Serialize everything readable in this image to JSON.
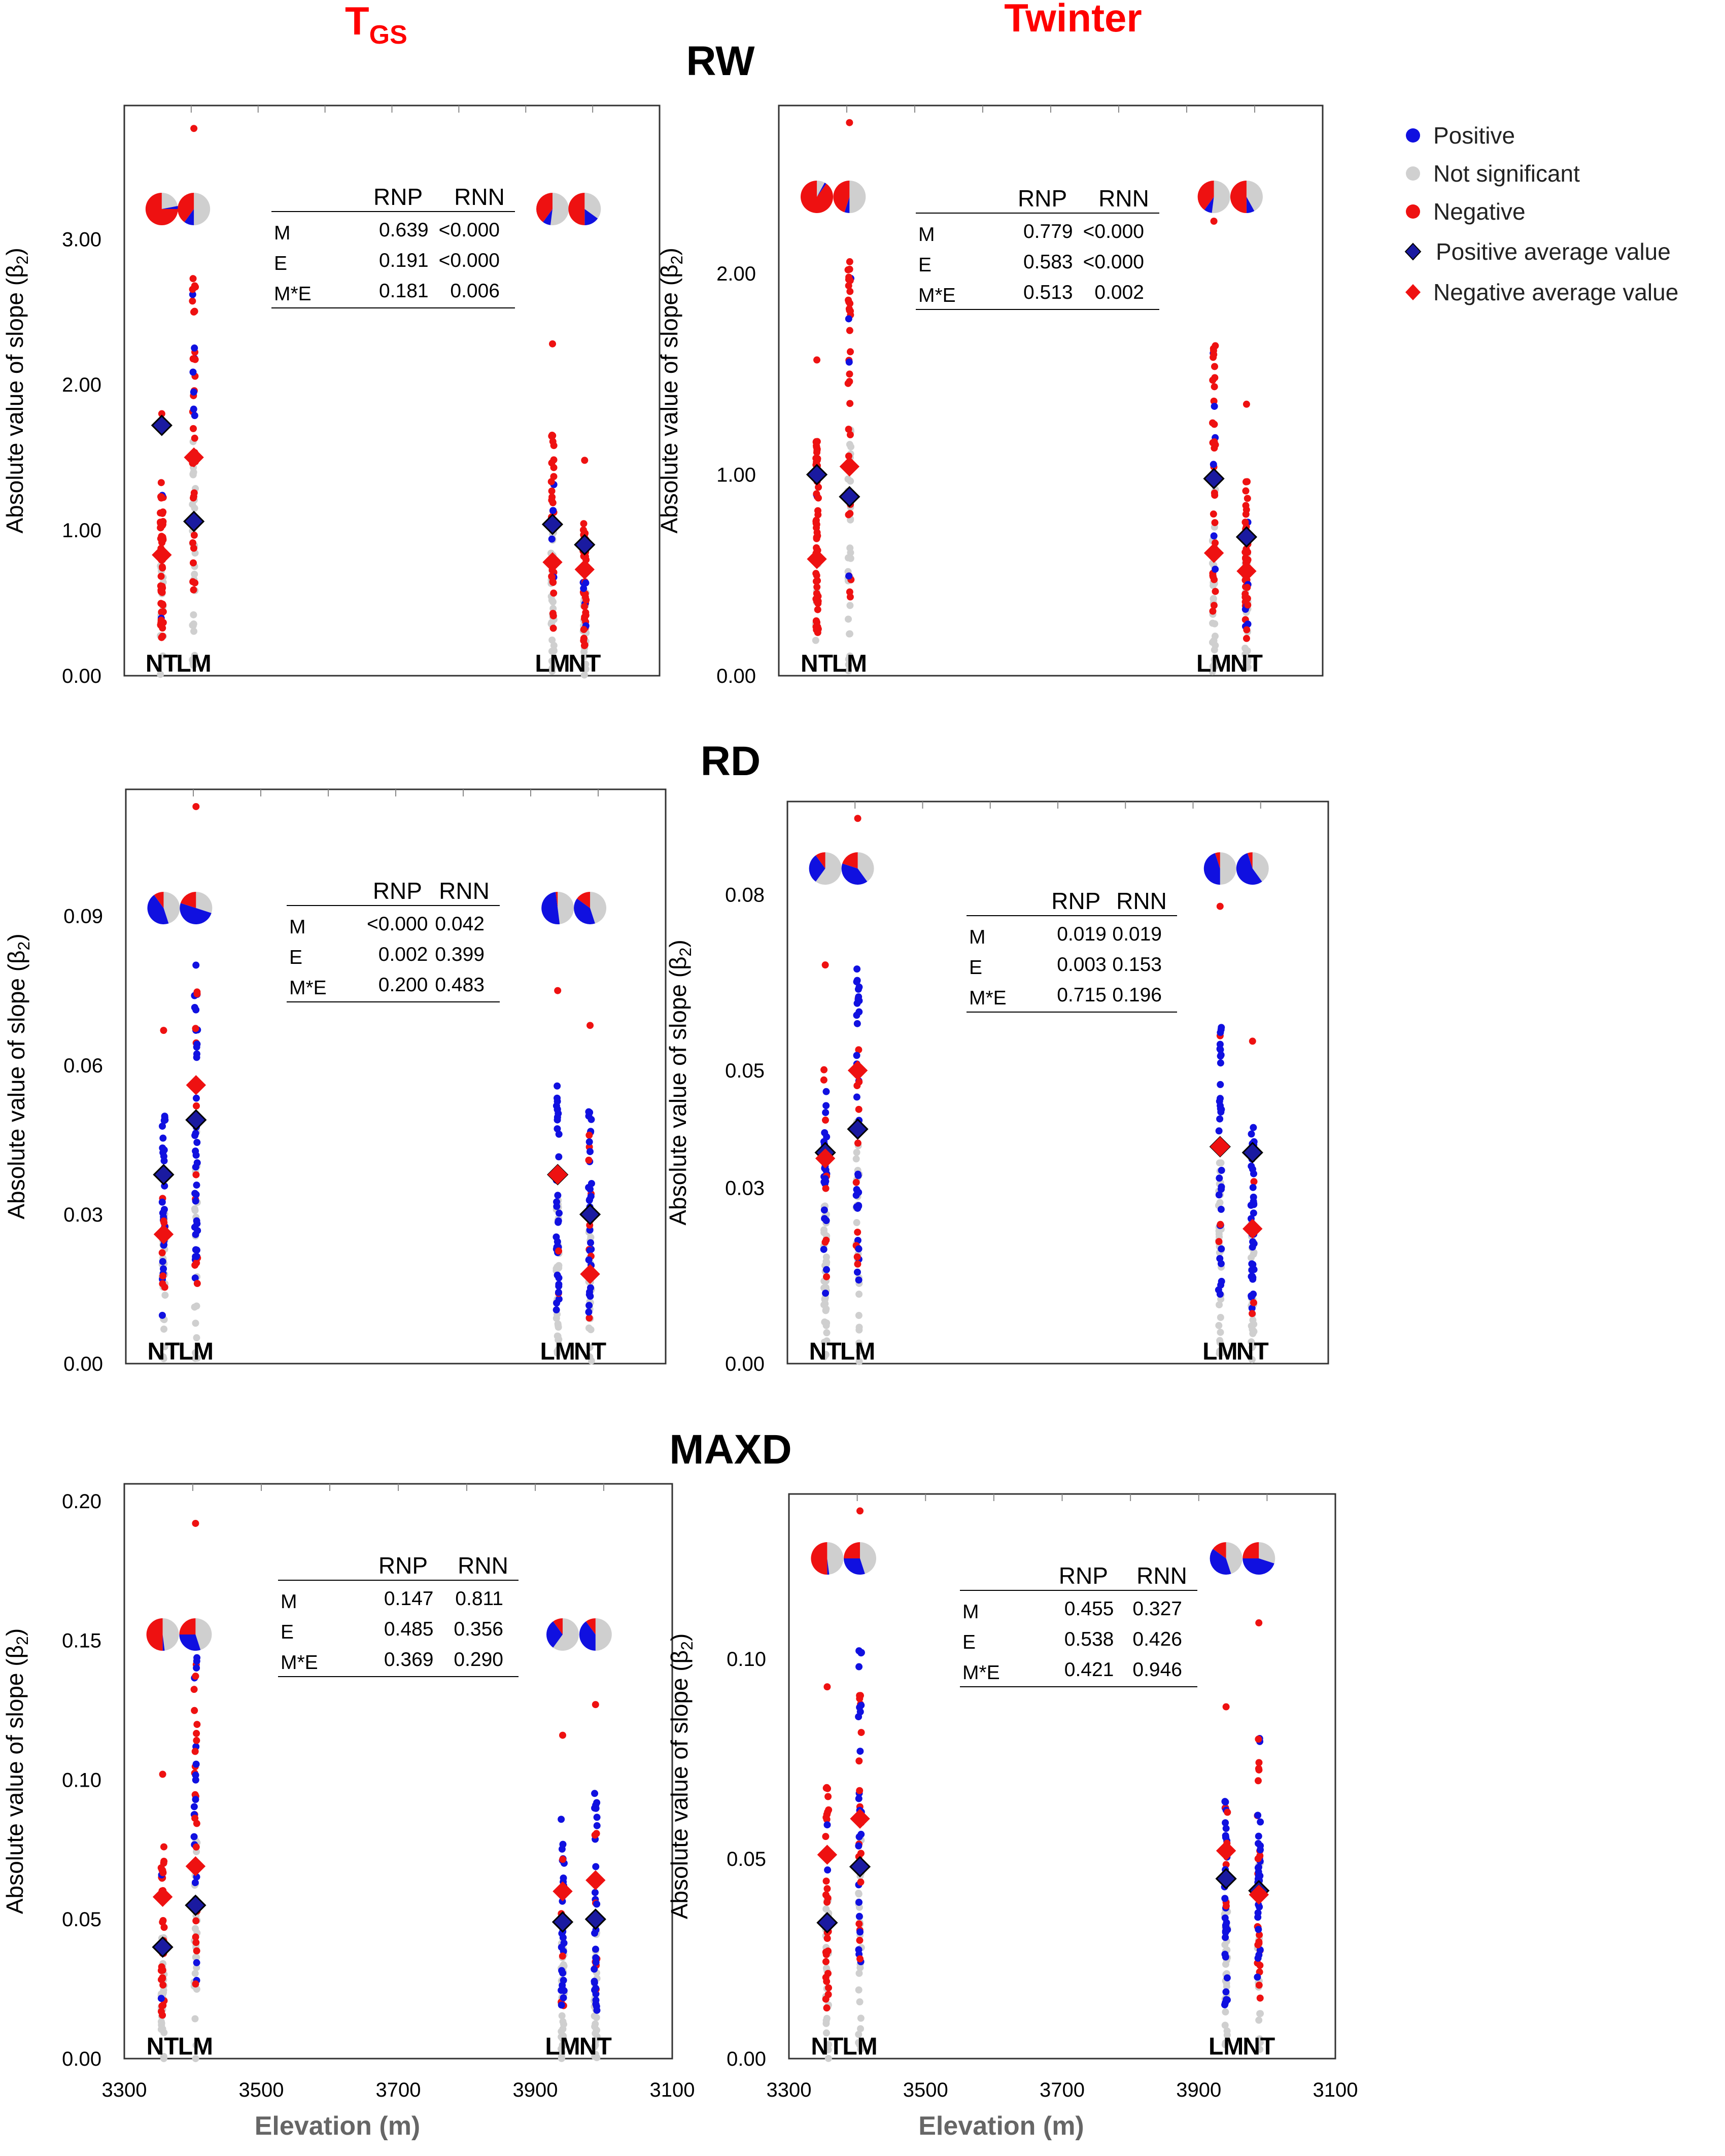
{
  "figure": {
    "column_titles": [
      {
        "main": "T",
        "sub": "GS"
      },
      {
        "main": "Twinter",
        "sub": ""
      }
    ],
    "row_titles": [
      "RW",
      "RD",
      "MAXD"
    ],
    "ylabel_prefix": "Absolute value of  slope (β",
    "ylabel_sub": "2",
    "ylabel_suffix": ")",
    "xlabel": "Elevation (m)",
    "xticks": [
      "3300",
      "3500",
      "3700",
      "3900",
      "3100"
    ],
    "table_header": [
      "RNP",
      "RNN"
    ],
    "table_rows": [
      "M",
      "E",
      "M*E"
    ],
    "sites": [
      "NT",
      "LM",
      "LM",
      "NT"
    ]
  },
  "legend": {
    "items": [
      {
        "label": "Positive",
        "color": "#1010e0",
        "shape": "dot"
      },
      {
        "label": "Not significant",
        "color": "#d0d0d0",
        "shape": "dot"
      },
      {
        "label": "Negative",
        "color": "#ee1111",
        "shape": "dot"
      },
      {
        "label": "Positive average value",
        "color": "#1a1aa0",
        "shape": "diamond"
      },
      {
        "label": "Negative average value",
        "color": "#ee1111",
        "shape": "diamond"
      }
    ]
  },
  "chart_data": [
    {
      "type": "scatter",
      "row": "RW",
      "column": "TGS",
      "yticks": [
        "0.00",
        "1.00",
        "2.00",
        "3.00"
      ],
      "ylim": [
        0,
        3.8
      ],
      "table": [
        [
          "0.639",
          "<0.000"
        ],
        [
          "0.191",
          "<0.000"
        ],
        [
          "0.181",
          "0.006"
        ]
      ],
      "groups": [
        {
          "site": "NT",
          "pos_avg": 1.72,
          "neg_avg": 0.83,
          "pie": {
            "pos": 0.03,
            "ns": 0.22,
            "neg": 0.75
          },
          "max": 1.8
        },
        {
          "site": "LM",
          "pos_avg": 1.06,
          "neg_avg": 1.5,
          "pie": {
            "pos": 0.1,
            "ns": 0.5,
            "neg": 0.4
          },
          "max": 3.76
        },
        {
          "site": "LM",
          "pos_avg": 1.04,
          "neg_avg": 0.78,
          "pie": {
            "pos": 0.08,
            "ns": 0.52,
            "neg": 0.4
          },
          "max": 2.28
        },
        {
          "site": "NT",
          "pos_avg": 0.9,
          "neg_avg": 0.73,
          "pie": {
            "pos": 0.15,
            "ns": 0.35,
            "neg": 0.5
          },
          "max": 1.48
        }
      ]
    },
    {
      "type": "scatter",
      "row": "RW",
      "column": "Twinter",
      "yticks": [
        "0.00",
        "1.00",
        "2.00"
      ],
      "ylim": [
        0,
        2.75
      ],
      "table": [
        [
          "0.779",
          "<0.000"
        ],
        [
          "0.583",
          "<0.000"
        ],
        [
          "0.513",
          "0.002"
        ]
      ],
      "groups": [
        {
          "site": "NT",
          "pos_avg": 1.0,
          "neg_avg": 0.58,
          "pie": {
            "pos": 0.02,
            "ns": 0.08,
            "neg": 0.9
          },
          "max": 1.57
        },
        {
          "site": "LM",
          "pos_avg": 0.89,
          "neg_avg": 1.04,
          "pie": {
            "pos": 0.05,
            "ns": 0.5,
            "neg": 0.45
          },
          "max": 2.75
        },
        {
          "site": "LM",
          "pos_avg": 0.98,
          "neg_avg": 0.61,
          "pie": {
            "pos": 0.08,
            "ns": 0.52,
            "neg": 0.4
          },
          "max": 2.26
        },
        {
          "site": "NT",
          "pos_avg": 0.69,
          "neg_avg": 0.52,
          "pie": {
            "pos": 0.08,
            "ns": 0.42,
            "neg": 0.5
          },
          "max": 1.35
        }
      ]
    },
    {
      "type": "scatter",
      "row": "RD",
      "column": "TGS",
      "yticks": [
        "0.00",
        "0.03",
        "0.06",
        "0.09"
      ],
      "ylim": [
        0,
        0.112
      ],
      "table": [
        [
          "<0.000",
          "0.042"
        ],
        [
          "0.002",
          "0.399"
        ],
        [
          "0.200",
          "0.483"
        ]
      ],
      "groups": [
        {
          "site": "NT",
          "pos_avg": 0.038,
          "neg_avg": 0.026,
          "pie": {
            "pos": 0.45,
            "ns": 0.45,
            "neg": 0.1
          },
          "max": 0.067
        },
        {
          "site": "LM",
          "pos_avg": 0.049,
          "neg_avg": 0.056,
          "pie": {
            "pos": 0.5,
            "ns": 0.3,
            "neg": 0.2
          },
          "max": 0.112
        },
        {
          "site": "LM",
          "pos_avg": 0.038,
          "neg_avg": 0.038,
          "pie": {
            "pos": 0.5,
            "ns": 0.48,
            "neg": 0.02
          },
          "max": 0.075
        },
        {
          "site": "NT",
          "pos_avg": 0.03,
          "neg_avg": 0.018,
          "pie": {
            "pos": 0.4,
            "ns": 0.45,
            "neg": 0.15
          },
          "max": 0.068
        }
      ]
    },
    {
      "type": "scatter",
      "row": "RD",
      "column": "Twinter",
      "yticks": [
        "0.00",
        "0.03",
        "0.05",
        "0.08"
      ],
      "ylim": [
        0,
        0.093
      ],
      "table": [
        [
          "0.019",
          "0.019"
        ],
        [
          "0.003",
          "0.153"
        ],
        [
          "0.715",
          "0.196"
        ]
      ],
      "groups": [
        {
          "site": "NT",
          "pos_avg": 0.036,
          "neg_avg": 0.035,
          "pie": {
            "pos": 0.3,
            "ns": 0.6,
            "neg": 0.1
          },
          "max": 0.068
        },
        {
          "site": "LM",
          "pos_avg": 0.04,
          "neg_avg": 0.05,
          "pie": {
            "pos": 0.4,
            "ns": 0.4,
            "neg": 0.2
          },
          "max": 0.093
        },
        {
          "site": "LM",
          "pos_avg": 0.037,
          "neg_avg": 0.037,
          "pie": {
            "pos": 0.45,
            "ns": 0.5,
            "neg": 0.05
          },
          "max": 0.078
        },
        {
          "site": "NT",
          "pos_avg": 0.036,
          "neg_avg": 0.023,
          "pie": {
            "pos": 0.55,
            "ns": 0.4,
            "neg": 0.05
          },
          "max": 0.055
        }
      ]
    },
    {
      "type": "scatter",
      "row": "MAXD",
      "column": "TGS",
      "yticks": [
        "0.00",
        "0.05",
        "0.10",
        "0.15",
        "0.20"
      ],
      "ylim": [
        0,
        0.2
      ],
      "table": [
        [
          "0.147",
          "0.811"
        ],
        [
          "0.485",
          "0.356"
        ],
        [
          "0.369",
          "0.290"
        ]
      ],
      "groups": [
        {
          "site": "NT",
          "pos_avg": 0.04,
          "neg_avg": 0.058,
          "pie": {
            "pos": 0.02,
            "ns": 0.48,
            "neg": 0.5
          },
          "max": 0.102
        },
        {
          "site": "LM",
          "pos_avg": 0.055,
          "neg_avg": 0.069,
          "pie": {
            "pos": 0.3,
            "ns": 0.45,
            "neg": 0.25
          },
          "max": 0.192
        },
        {
          "site": "LM",
          "pos_avg": 0.049,
          "neg_avg": 0.06,
          "pie": {
            "pos": 0.3,
            "ns": 0.6,
            "neg": 0.1
          },
          "max": 0.116
        },
        {
          "site": "NT",
          "pos_avg": 0.05,
          "neg_avg": 0.064,
          "pie": {
            "pos": 0.4,
            "ns": 0.5,
            "neg": 0.1
          },
          "max": 0.127
        }
      ]
    },
    {
      "type": "scatter",
      "row": "MAXD",
      "column": "Twinter",
      "yticks": [
        "0.00",
        "0.05",
        "0.10"
      ],
      "ylim": [
        0,
        0.137
      ],
      "table": [
        [
          "0.455",
          "0.327"
        ],
        [
          "0.538",
          "0.426"
        ],
        [
          "0.421",
          "0.946"
        ]
      ],
      "groups": [
        {
          "site": "NT",
          "pos_avg": 0.034,
          "neg_avg": 0.051,
          "pie": {
            "pos": 0.02,
            "ns": 0.48,
            "neg": 0.5
          },
          "max": 0.093
        },
        {
          "site": "LM",
          "pos_avg": 0.048,
          "neg_avg": 0.06,
          "pie": {
            "pos": 0.3,
            "ns": 0.45,
            "neg": 0.25
          },
          "max": 0.137
        },
        {
          "site": "LM",
          "pos_avg": 0.045,
          "neg_avg": 0.052,
          "pie": {
            "pos": 0.4,
            "ns": 0.45,
            "neg": 0.15
          },
          "max": 0.088
        },
        {
          "site": "NT",
          "pos_avg": 0.042,
          "neg_avg": 0.041,
          "pie": {
            "pos": 0.45,
            "ns": 0.3,
            "neg": 0.25
          },
          "max": 0.109
        }
      ]
    }
  ]
}
